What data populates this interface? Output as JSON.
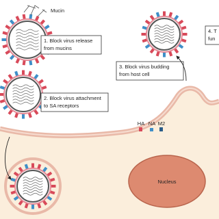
{
  "labels": {
    "mucin": "Mucin",
    "step1": [
      "1. Block virus release",
      "from mucins"
    ],
    "step2": [
      "2. Block virus attachment",
      "to SA receptors"
    ],
    "step3": [
      "3. Block virus budding",
      "from host cell"
    ],
    "step4": [
      "4. T",
      "fun"
    ]
  },
  "proteins": [
    "HA",
    "NA",
    "M2"
  ],
  "nucleus": "Nucleus"
}
